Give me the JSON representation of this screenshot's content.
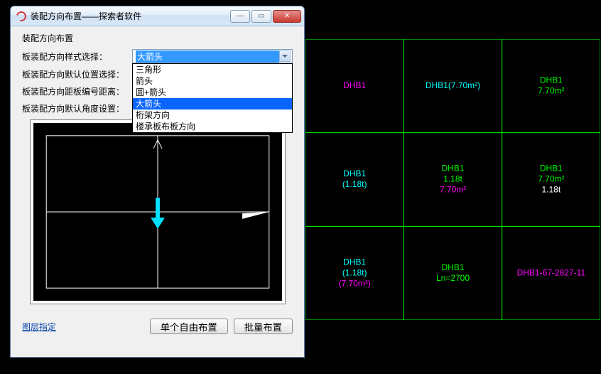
{
  "dialog": {
    "title": "装配方向布置——探索者软件",
    "section_title": "装配方向布置",
    "rows": {
      "style_label": "板装配方向样式选择：",
      "pos_label": "板装配方向默认位置选择：",
      "dist_label": "板装配方向距板编号距离：",
      "angle_label": "板装配方向默认角度设置："
    },
    "combo": {
      "selected": "大箭头",
      "options": [
        "三角形",
        "箭头",
        "圆+箭头",
        "大箭头",
        "桁架方向",
        "楼承板布板方向"
      ]
    },
    "link": "图层指定",
    "btn_single": "单个自由布置",
    "btn_batch": "批量布置"
  },
  "colors": {
    "grid_line": "#00ff00",
    "magenta": "#ff00ff",
    "cyan": "#00ffff",
    "green": "#00ff00",
    "white": "#ffffff"
  },
  "cad": {
    "grid": {
      "cols": 3,
      "rows": 3
    },
    "cells": [
      {
        "r": 0,
        "c": 0,
        "lines": [
          {
            "t": "DHB1",
            "color": "magenta"
          }
        ]
      },
      {
        "r": 0,
        "c": 1,
        "lines": [
          {
            "t": "DHB1(7.70m²)",
            "color": "cyan"
          }
        ]
      },
      {
        "r": 0,
        "c": 2,
        "lines": [
          {
            "t": "DHB1",
            "color": "green"
          },
          {
            "t": "7.70m²",
            "color": "green"
          }
        ]
      },
      {
        "r": 1,
        "c": 0,
        "lines": [
          {
            "t": "DHB1",
            "color": "cyan"
          },
          {
            "t": "(1.18t)",
            "color": "cyan"
          }
        ]
      },
      {
        "r": 1,
        "c": 1,
        "lines": [
          {
            "t": "DHB1",
            "color": "green"
          },
          {
            "t": "1.18t",
            "color": "green"
          },
          {
            "t": "7.70m²",
            "color": "magenta"
          }
        ]
      },
      {
        "r": 1,
        "c": 2,
        "lines": [
          {
            "t": "DHB1",
            "color": "green"
          },
          {
            "t": "7.70m²",
            "color": "green"
          },
          {
            "t": "1.18t",
            "color": "white"
          }
        ]
      },
      {
        "r": 2,
        "c": 0,
        "lines": [
          {
            "t": "DHB1",
            "color": "cyan"
          },
          {
            "t": "(1.18t)",
            "color": "cyan"
          },
          {
            "t": "(7.70m²)",
            "color": "magenta"
          }
        ]
      },
      {
        "r": 2,
        "c": 1,
        "lines": [
          {
            "t": "DHB1",
            "color": "green"
          },
          {
            "t": "Ln=2700",
            "color": "green"
          }
        ]
      },
      {
        "r": 2,
        "c": 2,
        "lines": [
          {
            "t": "DHB1-67-2827-11",
            "color": "magenta"
          }
        ]
      }
    ]
  }
}
